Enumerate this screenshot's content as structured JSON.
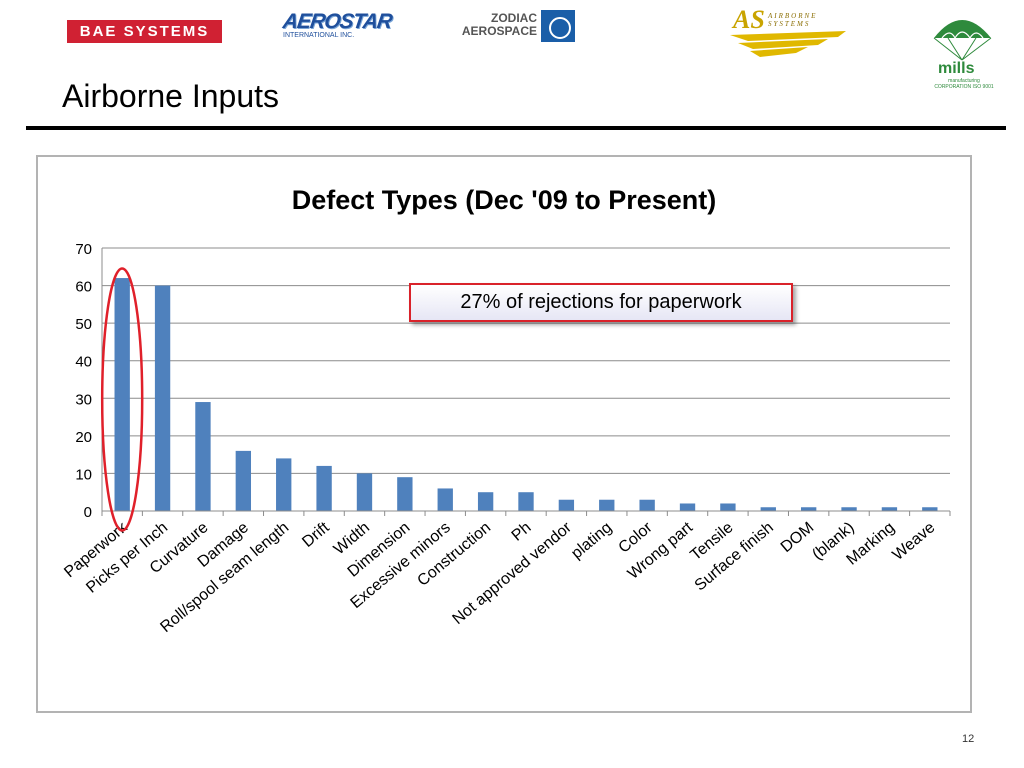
{
  "slide": {
    "title": "Airborne Inputs",
    "page_number": "12"
  },
  "logos": {
    "bae": "BAE SYSTEMS",
    "aerostar": "AEROSTAR",
    "aerostar_sub": "INTERNATIONAL INC.",
    "zodiac_line1": "ZODIAC",
    "zodiac_line2": "AEROSPACE",
    "as_mark": "AS",
    "as_name": "AIRBORNE SYSTEMS",
    "mills": "mills",
    "mills_sub": "manufacturing CORPORATION ISO 9001"
  },
  "callout": "27% of rejections for paperwork",
  "colors": {
    "bar": "#4f81bd",
    "highlight_ellipse": "#e0202a",
    "callout_border": "#d9222a"
  },
  "chart_data": {
    "type": "bar",
    "title": "Defect Types (Dec '09 to Present)",
    "xlabel": "",
    "ylabel": "",
    "ylim": [
      0,
      70
    ],
    "yticks": [
      0,
      10,
      20,
      30,
      40,
      50,
      60,
      70
    ],
    "grid": true,
    "legend": "none",
    "categories": [
      "Paperwork",
      "Picks per Inch",
      "Curvature",
      "Damage",
      "Roll/spool seam length",
      "Drift",
      "Width",
      "Dimension",
      "Excessive minors",
      "Construction",
      "Ph",
      "Not approved vendor",
      "plating",
      "Color",
      "Wrong part",
      "Tensile",
      "Surface finish",
      "DOM",
      "(blank)",
      "Marking",
      "Weave"
    ],
    "values": [
      62,
      60,
      29,
      16,
      14,
      12,
      10,
      9,
      6,
      5,
      5,
      3,
      3,
      3,
      2,
      2,
      1,
      1,
      1,
      1,
      1
    ],
    "highlighted_category": "Paperwork"
  }
}
